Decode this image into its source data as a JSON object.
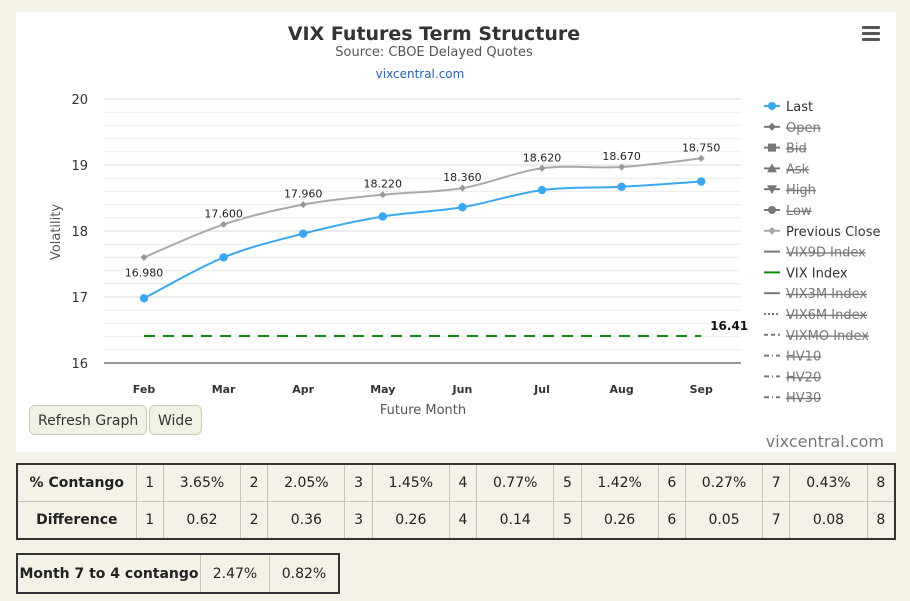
{
  "chart_data": {
    "type": "line",
    "title": "VIX Futures Term Structure",
    "subtitle": "Source: CBOE Delayed Quotes",
    "source_link": "vixcentral.com",
    "xlabel": "Future Month",
    "ylabel": "Volatility",
    "categories": [
      "Feb",
      "Mar",
      "Apr",
      "May",
      "Jun",
      "Jul",
      "Aug",
      "Sep"
    ],
    "ylim": [
      16,
      20
    ],
    "yticks": [
      16,
      17,
      18,
      19,
      20
    ],
    "grid": true,
    "legend_position": "right",
    "series": [
      {
        "name": "Last",
        "color": "#3aa8f0",
        "marker": "circle",
        "values": [
          16.98,
          17.6,
          17.96,
          18.22,
          18.36,
          18.62,
          18.67,
          18.75
        ],
        "labels": [
          "16.980",
          "17.600",
          "17.960",
          "18.220",
          "18.360",
          "18.620",
          "18.670",
          "18.750"
        ]
      },
      {
        "name": "Previous Close",
        "color": "#aaaaaa",
        "marker": "diamond",
        "values": [
          17.6,
          18.1,
          18.4,
          18.55,
          18.65,
          18.95,
          18.97,
          19.1
        ]
      },
      {
        "name": "VIX Index",
        "color": "#118811",
        "dash": "dashed",
        "values": [
          16.41,
          16.41,
          16.41,
          16.41,
          16.41,
          16.41,
          16.41,
          16.41
        ],
        "end_label": "16.41"
      }
    ],
    "legend": [
      {
        "name": "Last",
        "symbol": "circle",
        "line": "solid",
        "color": "#3aa8f0",
        "hidden": false
      },
      {
        "name": "Open",
        "symbol": "diamond",
        "line": "solid",
        "color": "#777777",
        "hidden": true
      },
      {
        "name": "Bid",
        "symbol": "square",
        "line": "solid",
        "color": "#777777",
        "hidden": true
      },
      {
        "name": "Ask",
        "symbol": "triangle",
        "line": "solid",
        "color": "#777777",
        "hidden": true
      },
      {
        "name": "High",
        "symbol": "triangle-down",
        "line": "solid",
        "color": "#777777",
        "hidden": true
      },
      {
        "name": "Low",
        "symbol": "circle",
        "line": "solid",
        "color": "#777777",
        "hidden": true
      },
      {
        "name": "Previous Close",
        "symbol": "diamond",
        "line": "solid",
        "color": "#aaaaaa",
        "hidden": false
      },
      {
        "name": "VIX9D Index",
        "symbol": "none",
        "line": "solid",
        "color": "#777777",
        "hidden": true
      },
      {
        "name": "VIX Index",
        "symbol": "none",
        "line": "solid",
        "color": "#118811",
        "hidden": false
      },
      {
        "name": "VIX3M Index",
        "symbol": "none",
        "line": "solid",
        "color": "#777777",
        "hidden": true
      },
      {
        "name": "VIX6M Index",
        "symbol": "none",
        "line": "dotted",
        "color": "#777777",
        "hidden": true
      },
      {
        "name": "VIXMO Index",
        "symbol": "none",
        "line": "dashed",
        "color": "#777777",
        "hidden": true
      },
      {
        "name": "HV10",
        "symbol": "none",
        "line": "dashdot",
        "color": "#777777",
        "hidden": true
      },
      {
        "name": "HV20",
        "symbol": "none",
        "line": "dashdot",
        "color": "#777777",
        "hidden": true
      },
      {
        "name": "HV30",
        "symbol": "none",
        "line": "dashdot",
        "color": "#777777",
        "hidden": true
      }
    ]
  },
  "buttons": {
    "refresh": "Refresh Graph",
    "wide": "Wide"
  },
  "watermark": "vixcentral.com",
  "contango_table": {
    "rows": [
      {
        "label": "% Contango",
        "cells": [
          "1",
          "3.65%",
          "2",
          "2.05%",
          "3",
          "1.45%",
          "4",
          "0.77%",
          "5",
          "1.42%",
          "6",
          "0.27%",
          "7",
          "0.43%",
          "8"
        ]
      },
      {
        "label": "Difference",
        "cells": [
          "1",
          "0.62",
          "2",
          "0.36",
          "3",
          "0.26",
          "4",
          "0.14",
          "5",
          "0.26",
          "6",
          "0.05",
          "7",
          "0.08",
          "8"
        ]
      }
    ]
  },
  "month_table": {
    "label": "Month 7 to 4 contango",
    "values": [
      "2.47%",
      "0.82%"
    ]
  }
}
